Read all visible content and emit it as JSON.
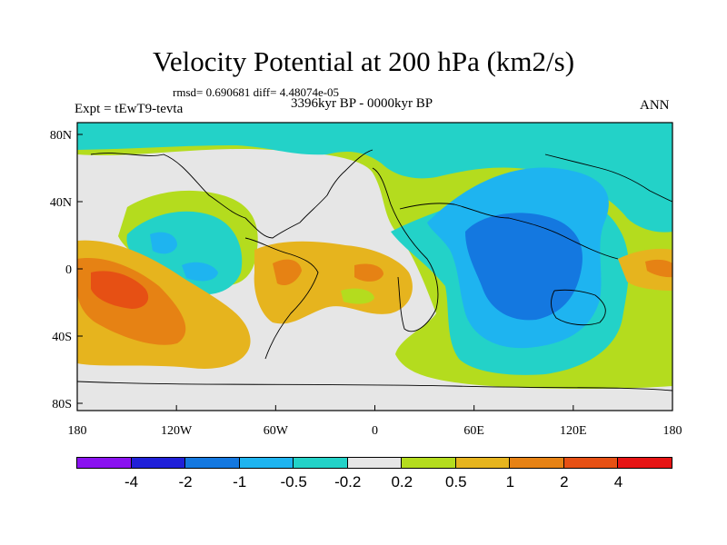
{
  "title": "Velocity Potential at 200 hPa (km2/s)",
  "stats": "rmsd= 0.690681 diff= 4.48074e-05",
  "period": "3396kyr BP - 0000kyr BP",
  "experiment": "Expt = tEwT9-tevta",
  "season": "ANN",
  "axes": {
    "x_ticks": [
      "180",
      "120W",
      "60W",
      "0",
      "60E",
      "120E",
      "180"
    ],
    "y_ticks": [
      "80N",
      "40N",
      "0",
      "40S",
      "80S"
    ]
  },
  "colorbar": {
    "colors": [
      "#8a12f0",
      "#2020d8",
      "#1478e0",
      "#1eb4f0",
      "#23d2c8",
      "#e6e6e6",
      "#b4dc1e",
      "#e6b41e",
      "#e68214",
      "#e65014",
      "#e61414"
    ],
    "labels": [
      "-4",
      "-2",
      "-1",
      "-0.5",
      "-0.2",
      "0.2",
      "0.5",
      "1",
      "2",
      "4"
    ]
  },
  "field_description": {
    "range_units": "km2/s",
    "background_level": "0.2"
  }
}
